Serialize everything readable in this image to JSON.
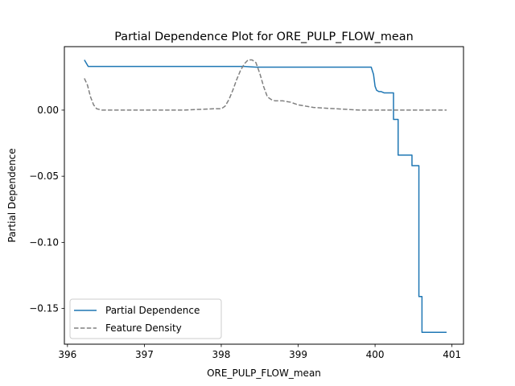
{
  "chart_data": {
    "type": "line",
    "title": "Partial Dependence Plot for ORE_PULP_FLOW_mean",
    "xlabel": "ORE_PULP_FLOW_mean",
    "ylabel": "Partial Dependence",
    "xlim": [
      395.96,
      401.15
    ],
    "ylim": [
      -0.177,
      0.048
    ],
    "xticks": [
      396,
      397,
      398,
      399,
      400,
      401
    ],
    "yticks": [
      {
        "value": 0.0,
        "label": "0.00"
      },
      {
        "value": -0.05,
        "label": "−0.05"
      },
      {
        "value": -0.1,
        "label": "−0.10"
      },
      {
        "value": -0.15,
        "label": "−0.15"
      }
    ],
    "grid": false,
    "legend_position": "lower-left",
    "series": [
      {
        "name": "Partial Dependence",
        "color": "#1f77b4",
        "style": "solid",
        "x": [
          396.22,
          396.27,
          396.5,
          397.0,
          397.5,
          398.0,
          398.3,
          398.45,
          398.6,
          399.0,
          399.5,
          399.95,
          399.98,
          400.0,
          400.02,
          400.05,
          400.08,
          400.12,
          400.24,
          400.24,
          400.3,
          400.3,
          400.48,
          400.48,
          400.57,
          400.57,
          400.61,
          400.61,
          400.67,
          400.67,
          400.93
        ],
        "y": [
          0.038,
          0.033,
          0.033,
          0.033,
          0.033,
          0.033,
          0.033,
          0.0325,
          0.0325,
          0.0325,
          0.0325,
          0.0325,
          0.027,
          0.018,
          0.015,
          0.014,
          0.014,
          0.013,
          0.013,
          -0.007,
          -0.007,
          -0.034,
          -0.034,
          -0.042,
          -0.042,
          -0.141,
          -0.141,
          -0.168,
          -0.168,
          -0.168,
          -0.168
        ]
      },
      {
        "name": "Feature Density",
        "color": "#808080",
        "style": "dashed",
        "x": [
          396.22,
          396.26,
          396.3,
          396.34,
          396.38,
          396.45,
          396.6,
          397.0,
          397.5,
          397.9,
          398.0,
          398.05,
          398.1,
          398.15,
          398.2,
          398.25,
          398.3,
          398.35,
          398.4,
          398.45,
          398.5,
          398.55,
          398.6,
          398.65,
          398.7,
          398.8,
          398.9,
          399.0,
          399.2,
          399.5,
          399.8,
          400.0,
          400.5,
          400.93
        ],
        "y": [
          0.024,
          0.019,
          0.01,
          0.004,
          0.001,
          0.0,
          0.0,
          0.0,
          0.0,
          0.001,
          0.001,
          0.003,
          0.008,
          0.015,
          0.023,
          0.03,
          0.035,
          0.038,
          0.038,
          0.036,
          0.028,
          0.018,
          0.01,
          0.008,
          0.007,
          0.007,
          0.006,
          0.004,
          0.002,
          0.001,
          0.0,
          0.0,
          0.0,
          0.0
        ]
      }
    ]
  }
}
